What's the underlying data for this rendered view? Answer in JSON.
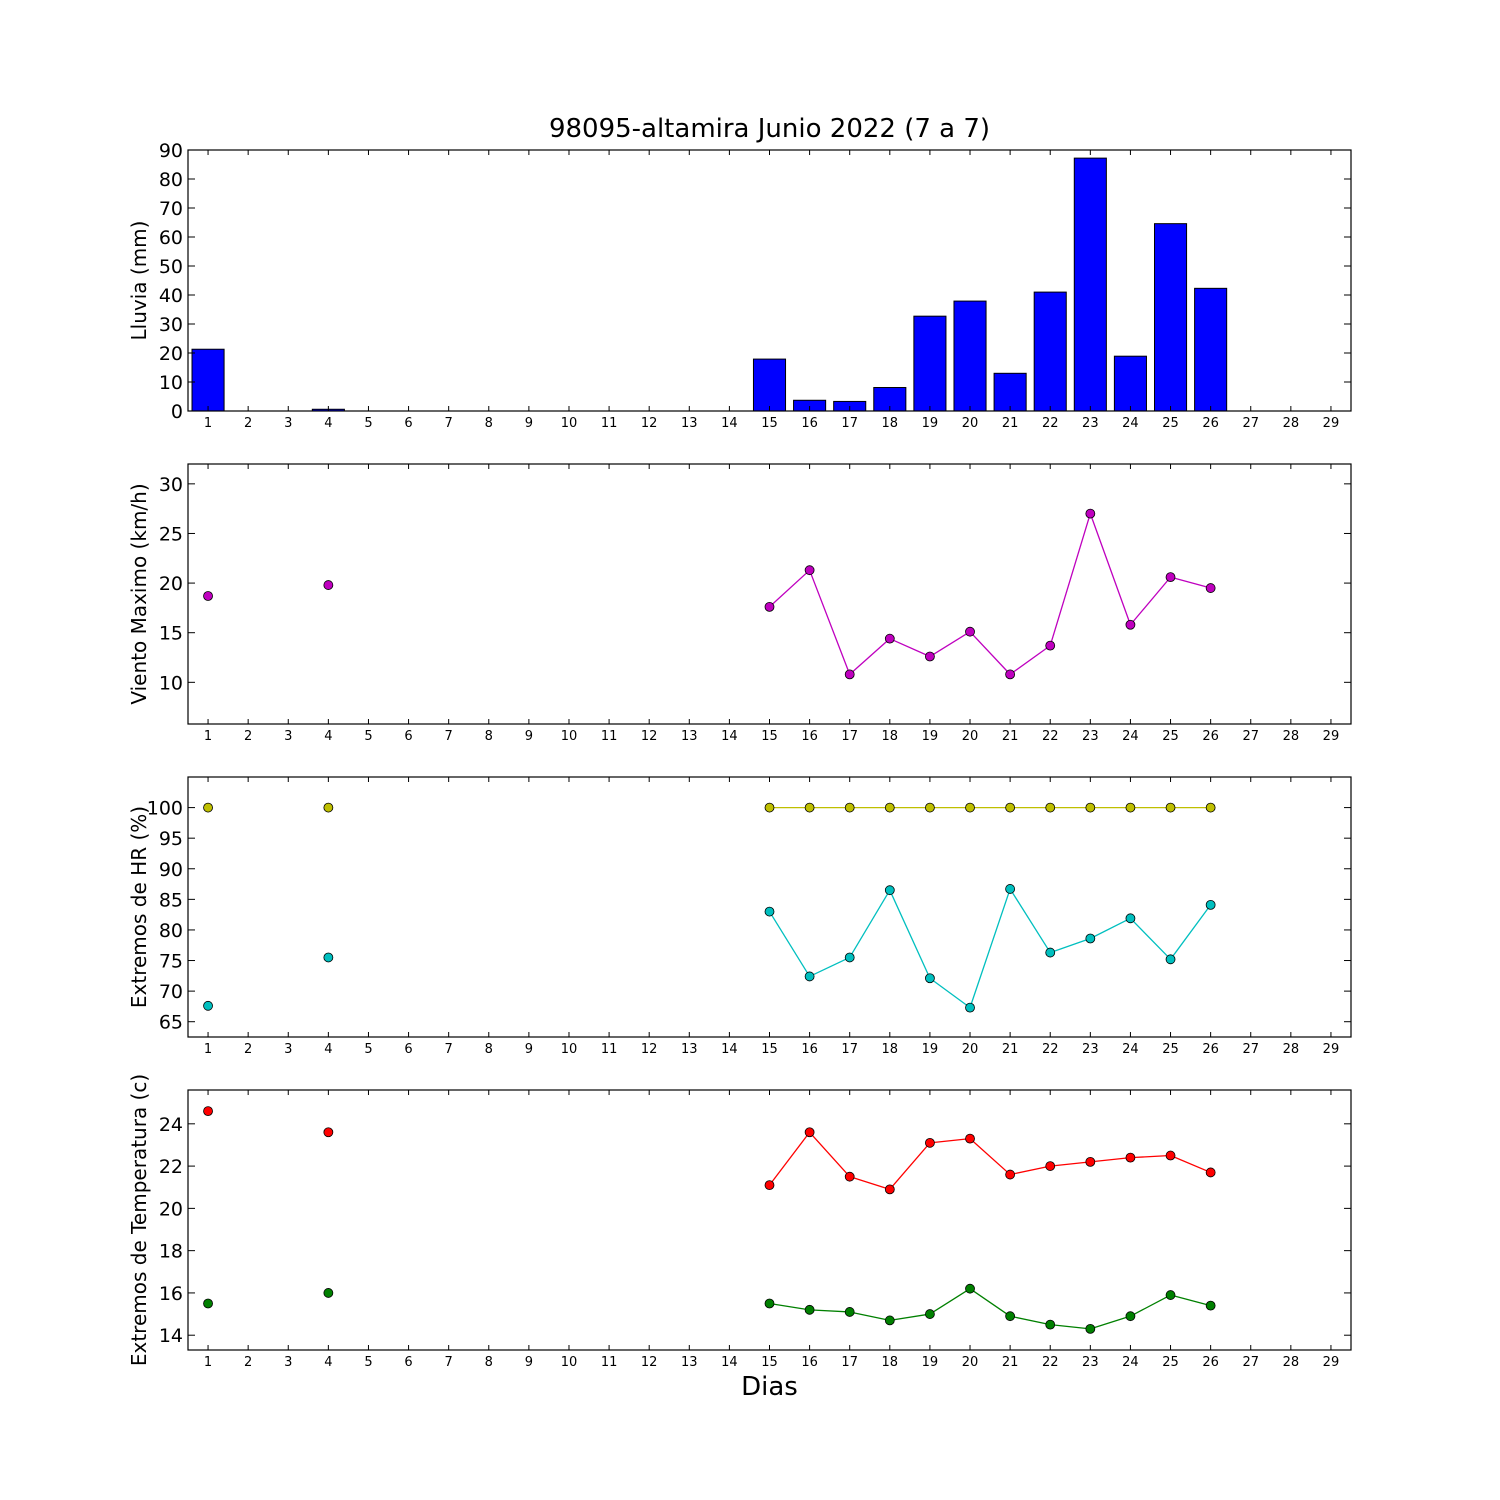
{
  "chart_data": [
    {
      "type": "bar",
      "title": "98095-altamira Junio 2022  (7 a 7)",
      "ylabel": "Lluvia (mm)",
      "xlabel": "",
      "ylim": [
        0,
        90
      ],
      "yticks": [
        0,
        10,
        20,
        30,
        40,
        50,
        60,
        70,
        80,
        90
      ],
      "x": [
        1,
        4,
        15,
        16,
        17,
        18,
        19,
        20,
        21,
        22,
        23,
        24,
        25,
        26
      ],
      "values": [
        21.3,
        0.6,
        17.9,
        3.7,
        3.3,
        8.1,
        32.7,
        37.9,
        13.0,
        41.0,
        87.2,
        18.9,
        64.6,
        42.3
      ],
      "bar_color": "#0000ff",
      "xticks": [
        1,
        2,
        3,
        4,
        5,
        6,
        7,
        8,
        9,
        10,
        11,
        12,
        13,
        14,
        15,
        16,
        17,
        18,
        19,
        20,
        21,
        22,
        23,
        24,
        25,
        26,
        27,
        28,
        29
      ]
    },
    {
      "type": "line",
      "ylabel": "Viento Maximo (km/h)",
      "ylim": [
        5.8,
        32
      ],
      "yticks": [
        10,
        15,
        20,
        25,
        30
      ],
      "series": [
        {
          "color": "#bf00bf",
          "x": [
            1,
            4,
            15,
            16,
            17,
            18,
            19,
            20,
            21,
            22,
            23,
            24,
            25,
            26
          ],
          "values": [
            18.7,
            19.8,
            17.6,
            21.3,
            10.8,
            14.4,
            12.6,
            15.1,
            10.8,
            13.7,
            27.0,
            15.8,
            20.6,
            19.5
          ]
        }
      ],
      "xticks": [
        1,
        2,
        3,
        4,
        5,
        6,
        7,
        8,
        9,
        10,
        11,
        12,
        13,
        14,
        15,
        16,
        17,
        18,
        19,
        20,
        21,
        22,
        23,
        24,
        25,
        26,
        27,
        28,
        29
      ]
    },
    {
      "type": "line",
      "ylabel": "Extremos de HR (%)",
      "ylim": [
        62.5,
        105
      ],
      "yticks": [
        65,
        70,
        75,
        80,
        85,
        90,
        95,
        100
      ],
      "series": [
        {
          "color": "#bfbf00",
          "x": [
            1,
            4,
            15,
            16,
            17,
            18,
            19,
            20,
            21,
            22,
            23,
            24,
            25,
            26
          ],
          "values": [
            100,
            100,
            100,
            100,
            100,
            100,
            100,
            100,
            100,
            100,
            100,
            100,
            100,
            100
          ]
        },
        {
          "color": "#00bfbf",
          "x": [
            1,
            4,
            15,
            16,
            17,
            18,
            19,
            20,
            21,
            22,
            23,
            24,
            25,
            26
          ],
          "values": [
            67.6,
            75.5,
            83.0,
            72.4,
            75.5,
            86.5,
            72.1,
            67.3,
            86.7,
            76.3,
            78.6,
            81.9,
            75.2,
            84.1
          ]
        }
      ],
      "xticks": [
        1,
        2,
        3,
        4,
        5,
        6,
        7,
        8,
        9,
        10,
        11,
        12,
        13,
        14,
        15,
        16,
        17,
        18,
        19,
        20,
        21,
        22,
        23,
        24,
        25,
        26,
        27,
        28,
        29
      ]
    },
    {
      "type": "line",
      "ylabel": "Extremos de Temperatura (c)",
      "xlabel": "Dias",
      "ylim": [
        13.3,
        25.6
      ],
      "yticks": [
        14,
        16,
        18,
        20,
        22,
        24
      ],
      "series": [
        {
          "color": "#ff0000",
          "x": [
            1,
            4,
            15,
            16,
            17,
            18,
            19,
            20,
            21,
            22,
            23,
            24,
            25,
            26
          ],
          "values": [
            24.6,
            23.6,
            21.1,
            23.6,
            21.5,
            20.9,
            23.1,
            23.3,
            21.6,
            22.0,
            22.2,
            22.4,
            22.5,
            21.7
          ]
        },
        {
          "color": "#008000",
          "x": [
            1,
            4,
            15,
            16,
            17,
            18,
            19,
            20,
            21,
            22,
            23,
            24,
            25,
            26
          ],
          "values": [
            15.5,
            16.0,
            15.5,
            15.2,
            15.1,
            14.7,
            15.0,
            16.2,
            14.9,
            14.5,
            14.3,
            14.9,
            15.9,
            15.4
          ]
        }
      ],
      "xticks": [
        1,
        2,
        3,
        4,
        5,
        6,
        7,
        8,
        9,
        10,
        11,
        12,
        13,
        14,
        15,
        16,
        17,
        18,
        19,
        20,
        21,
        22,
        23,
        24,
        25,
        26,
        27,
        28,
        29
      ]
    }
  ]
}
